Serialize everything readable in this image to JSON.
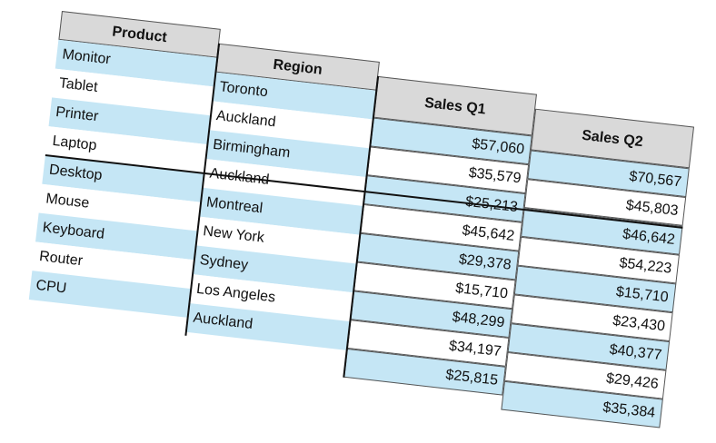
{
  "table": {
    "columns": [
      {
        "header": "Product",
        "cells": [
          "Monitor",
          "Tablet",
          "Printer",
          "Laptop",
          "Desktop",
          "Mouse",
          "Keyboard",
          "Router",
          "CPU"
        ]
      },
      {
        "header": "Region",
        "cells": [
          "Toronto",
          "Auckland",
          "Birmingham",
          "Auckland",
          "Montreal",
          "New York",
          "Sydney",
          "Los Angeles",
          "Auckland"
        ]
      },
      {
        "header": "Sales Q1",
        "cells": [
          "$57,060",
          "$35,579",
          "$25,213",
          "$45,642",
          "$29,378",
          "$15,710",
          "$48,299",
          "$34,197",
          "$25,815"
        ]
      },
      {
        "header": "Sales Q2",
        "cells": [
          "$70,567",
          "$45,803",
          "$46,642",
          "$54,223",
          "$15,710",
          "$23,430",
          "$40,377",
          "$29,426",
          "$35,384"
        ]
      }
    ],
    "colors": {
      "header_fill": "#d9d9d9",
      "band_fill": "#c5e6f5",
      "plain_fill": "#ffffff"
    }
  }
}
